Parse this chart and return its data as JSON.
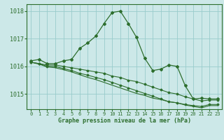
{
  "line1": [
    1016.2,
    1016.25,
    1016.1,
    1016.1,
    1016.2,
    1016.25,
    1016.65,
    1016.85,
    1017.1,
    1017.55,
    1017.95,
    1018.0,
    1017.55,
    1017.05,
    1016.3,
    1015.85,
    1015.9,
    1016.05,
    1016.0,
    1015.3,
    1014.82,
    1014.85,
    1014.82,
    1014.82
  ],
  "line2": [
    1016.15,
    1016.1,
    1016.05,
    1016.05,
    1016.0,
    1015.95,
    1015.9,
    1015.85,
    1015.8,
    1015.75,
    1015.65,
    1015.6,
    1015.5,
    1015.45,
    1015.35,
    1015.25,
    1015.15,
    1015.05,
    1015.0,
    1014.9,
    1014.82,
    1014.75,
    1014.78,
    1014.78
  ],
  "line3": [
    1016.15,
    1016.1,
    1016.0,
    1016.0,
    1015.92,
    1015.85,
    1015.75,
    1015.68,
    1015.6,
    1015.52,
    1015.42,
    1015.32,
    1015.22,
    1015.12,
    1015.02,
    1014.92,
    1014.82,
    1014.72,
    1014.68,
    1014.62,
    1014.58,
    1014.55,
    1014.62,
    1014.62
  ],
  "line4": [
    1016.15,
    1016.08,
    1015.98,
    1015.95,
    1015.88,
    1015.8,
    1015.7,
    1015.6,
    1015.52,
    1015.42,
    1015.32,
    1015.22,
    1015.12,
    1015.02,
    1014.95,
    1014.85,
    1014.8,
    1014.72,
    1014.68,
    1014.6,
    1014.55,
    1014.5,
    1014.58,
    1014.58
  ],
  "line_color": "#2d6e2d",
  "bg_color": "#cce8e8",
  "grid_color": "#99cccc",
  "xlabel": "Graphe pression niveau de la mer (hPa)",
  "ylim": [
    1014.45,
    1018.25
  ],
  "xlim": [
    -0.5,
    23.5
  ],
  "yticks": [
    1015,
    1016,
    1017,
    1018
  ],
  "xticks": [
    0,
    1,
    2,
    3,
    4,
    5,
    6,
    7,
    8,
    9,
    10,
    11,
    12,
    13,
    14,
    15,
    16,
    17,
    18,
    19,
    20,
    21,
    22,
    23
  ]
}
